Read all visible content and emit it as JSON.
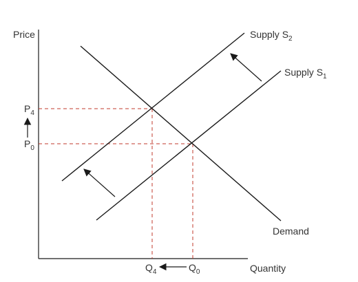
{
  "axes": {
    "y_label": "Price",
    "x_label": "Quantity"
  },
  "curves": {
    "supply_new": {
      "prefix": "Supply S",
      "sub": "2"
    },
    "supply_old": {
      "prefix": "Supply S",
      "sub": "1"
    },
    "demand": "Demand"
  },
  "price_labels": {
    "p4": {
      "main": "P",
      "sub": "4"
    },
    "p0": {
      "main": "P",
      "sub": "0"
    }
  },
  "quantity_labels": {
    "q4": {
      "main": "Q",
      "sub": "4"
    },
    "q0": {
      "main": "Q",
      "sub": "0"
    }
  },
  "colors": {
    "line": "#1a1a1a",
    "guide": "#c0392b",
    "text": "#333333"
  }
}
